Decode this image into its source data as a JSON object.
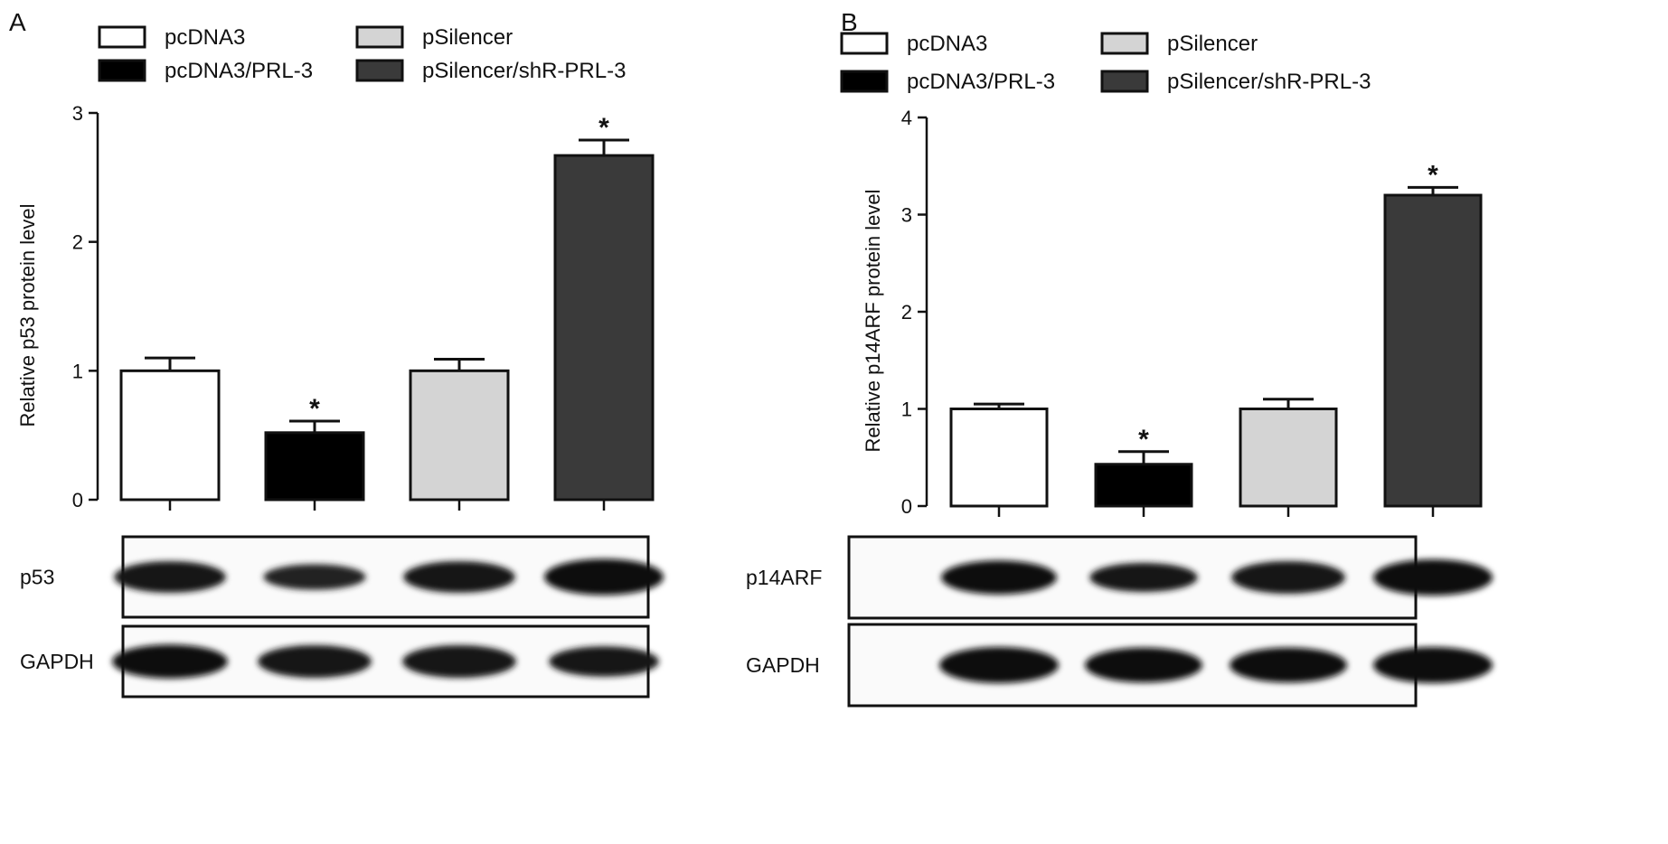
{
  "figure": {
    "letters": [
      "A",
      "B"
    ]
  },
  "legend": {
    "entries": [
      {
        "name": "pcDNA3",
        "color": "#ffffff"
      },
      {
        "name": "pcDNA3/PRL-3",
        "color": "#000000"
      },
      {
        "name": "pSilencer",
        "color": "#d4d4d4"
      },
      {
        "name": "pSilencer/shR-PRL-3",
        "color": "#3a3a3a"
      }
    ]
  },
  "chart_data": [
    {
      "panel": "A",
      "type": "bar",
      "categories": [
        "pcDNA3",
        "pcDNA3/PRL-3",
        "pSilencer",
        "pSilencer/shR-PRL-3"
      ],
      "values": [
        1.0,
        0.52,
        1.0,
        2.67
      ],
      "errors": [
        0.1,
        0.09,
        0.09,
        0.12
      ],
      "significant": [
        false,
        true,
        false,
        true
      ],
      "colors": [
        "#ffffff",
        "#000000",
        "#d4d4d4",
        "#3a3a3a"
      ],
      "title": "",
      "xlabel": "",
      "ylabel": "Relative p53 protein level",
      "ylim": [
        0,
        3
      ],
      "yticks": [
        0,
        1,
        2,
        3
      ],
      "significance_marker": "*",
      "blots": [
        {
          "label": "p53",
          "intensity": [
            0.8,
            0.55,
            0.8,
            1.0
          ]
        },
        {
          "label": "GAPDH",
          "intensity": [
            0.9,
            0.85,
            0.85,
            0.75
          ]
        }
      ]
    },
    {
      "panel": "B",
      "type": "bar",
      "categories": [
        "pcDNA3",
        "pcDNA3/PRL-3",
        "pSilencer",
        "pSilencer/shR-PRL-3"
      ],
      "values": [
        1.0,
        0.43,
        1.0,
        3.2
      ],
      "errors": [
        0.05,
        0.13,
        0.1,
        0.08
      ],
      "significant": [
        false,
        true,
        false,
        true
      ],
      "colors": [
        "#ffffff",
        "#000000",
        "#d4d4d4",
        "#3a3a3a"
      ],
      "title": "",
      "xlabel": "",
      "ylabel": "Relative p14ARF protein level",
      "ylim": [
        0,
        4
      ],
      "yticks": [
        0,
        1,
        2,
        3,
        4
      ],
      "significance_marker": "*",
      "blots": [
        {
          "label": "p14ARF",
          "intensity": [
            0.9,
            0.7,
            0.85,
            1.0
          ]
        },
        {
          "label": "GAPDH",
          "intensity": [
            1.0,
            0.95,
            0.95,
            1.0
          ]
        }
      ]
    }
  ]
}
